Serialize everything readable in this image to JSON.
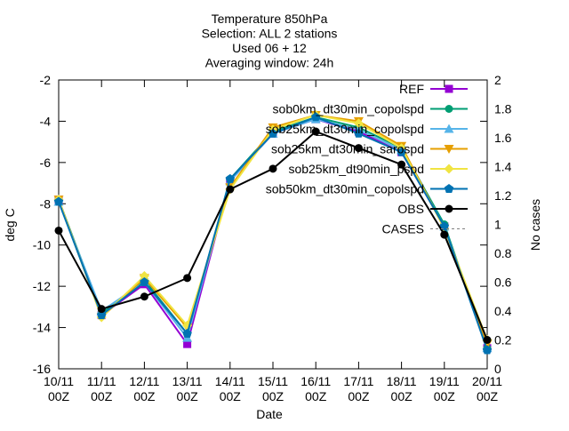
{
  "chart_data": {
    "type": "line",
    "title_lines": [
      "Temperature 850hPa",
      "Selection: ALL       2 stations",
      "Used 06 + 12",
      "Averaging window: 24h"
    ],
    "xlabel": "Date",
    "ylabel": "deg C",
    "y2label": "No cases",
    "x_ticks": [
      [
        "10/11",
        "00Z"
      ],
      [
        "11/11",
        "00Z"
      ],
      [
        "12/11",
        "00Z"
      ],
      [
        "13/11",
        "00Z"
      ],
      [
        "14/11",
        "00Z"
      ],
      [
        "15/11",
        "00Z"
      ],
      [
        "16/11",
        "00Z"
      ],
      [
        "17/11",
        "00Z"
      ],
      [
        "18/11",
        "00Z"
      ],
      [
        "19/11",
        "00Z"
      ],
      [
        "20/11",
        "00Z"
      ]
    ],
    "ylim": [
      -16,
      -2
    ],
    "y_ticks": [
      -16,
      -14,
      -12,
      -10,
      -8,
      -6,
      -4,
      -2
    ],
    "y2lim": [
      0,
      2
    ],
    "y2_ticks": [
      "0",
      "0.2",
      "0.4",
      "0.6",
      "0.8",
      "1",
      "1.2",
      "1.4",
      "1.6",
      "1.8",
      "2"
    ],
    "grid": false,
    "legend_position": "top-right",
    "series": [
      {
        "name": "REF",
        "color": "#9400d3",
        "marker": "square",
        "values": [
          -7.8,
          -13.4,
          -11.9,
          -14.8,
          -6.9,
          -4.6,
          -3.9,
          -4.5,
          -5.5,
          -9.1,
          -15.0
        ]
      },
      {
        "name": "sob0km_dt30min_copolspd",
        "color": "#009e73",
        "marker": "circle",
        "values": [
          -7.8,
          -13.3,
          -11.7,
          -14.3,
          -6.8,
          -4.5,
          -3.8,
          -4.3,
          -5.3,
          -9.0,
          -15.0
        ]
      },
      {
        "name": "sob25km_dt30min_copolspd",
        "color": "#56b4e9",
        "marker": "triangle",
        "values": [
          -7.9,
          -13.2,
          -11.8,
          -14.5,
          -6.9,
          -4.6,
          -3.9,
          -4.4,
          -5.4,
          -9.1,
          -15.0
        ]
      },
      {
        "name": "sob25km_dt30min_sarospd",
        "color": "#e69f00",
        "marker": "triangle-down",
        "values": [
          -7.8,
          -13.5,
          -11.6,
          -14.0,
          -7.2,
          -4.3,
          -3.7,
          -4.0,
          -5.2,
          -9.2,
          -14.8
        ]
      },
      {
        "name": "sob25km_dt90min_pspd",
        "color": "#f0e442",
        "marker": "diamond",
        "values": [
          -7.8,
          -13.5,
          -11.5,
          -13.9,
          -7.3,
          -4.4,
          -3.7,
          -4.1,
          -5.3,
          -9.2,
          -14.6
        ]
      },
      {
        "name": "sob50km_dt30min_copolspd",
        "color": "#0072b2",
        "marker": "pentagon",
        "values": [
          -7.9,
          -13.4,
          -11.8,
          -14.3,
          -6.8,
          -4.6,
          -3.8,
          -4.6,
          -5.5,
          -9.1,
          -15.1
        ]
      },
      {
        "name": "OBS",
        "color": "#000000",
        "marker": "circle",
        "values": [
          -9.3,
          -13.1,
          -12.5,
          -11.6,
          -7.3,
          -6.3,
          -4.5,
          -5.3,
          -6.1,
          -9.5,
          -14.6
        ]
      },
      {
        "name": "CASES",
        "color": "#808080",
        "marker": "none",
        "dashed": true,
        "axis": "y2",
        "values": []
      }
    ]
  }
}
